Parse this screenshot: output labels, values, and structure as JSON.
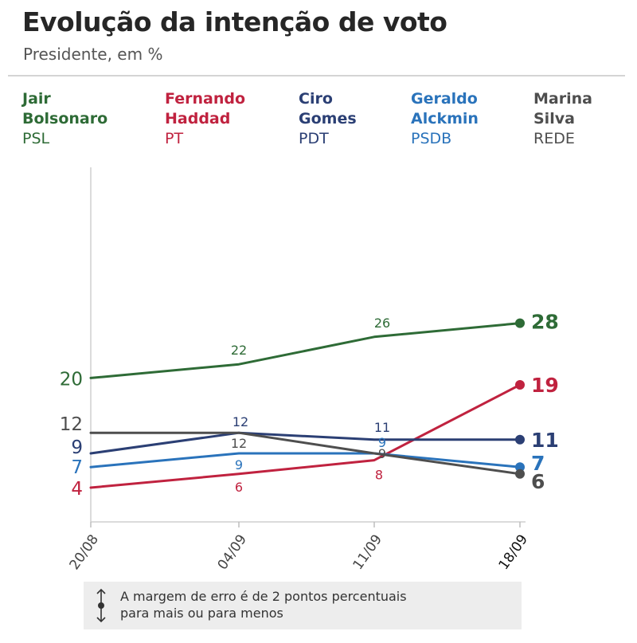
{
  "header": {
    "title": "Evolução da intenção de voto",
    "subtitle": "Presidente, em %"
  },
  "note": {
    "line1": "A margem de erro é de 2 pontos percentuais",
    "line2": "para mais ou para menos"
  },
  "chart_data": {
    "type": "line",
    "categories": [
      "20/08",
      "04/09",
      "11/09",
      "18/09"
    ],
    "grid": false,
    "legend_placement": "top",
    "series": [
      {
        "name_line1": "Jair",
        "name_line2": "Bolsonaro",
        "party": "PSL",
        "color": "#2e6b36",
        "values": [
          20,
          22,
          26,
          28
        ]
      },
      {
        "name_line1": "Fernando",
        "name_line2": "Haddad",
        "party": "PT",
        "color": "#c0223f",
        "values": [
          4,
          6,
          8,
          19
        ]
      },
      {
        "name_line1": "Ciro",
        "name_line2": "Gomes",
        "party": "PDT",
        "color": "#2b3f74",
        "values": [
          9,
          12,
          11,
          11
        ]
      },
      {
        "name_line1": "Geraldo",
        "name_line2": "Alckmin",
        "party": "PSDB",
        "color": "#2a73bb",
        "values": [
          7,
          9,
          9,
          7
        ]
      },
      {
        "name_line1": "Marina",
        "name_line2": "Silva",
        "party": "REDE",
        "color": "#4e4e4e",
        "values": [
          12,
          12,
          9,
          6
        ]
      }
    ]
  }
}
